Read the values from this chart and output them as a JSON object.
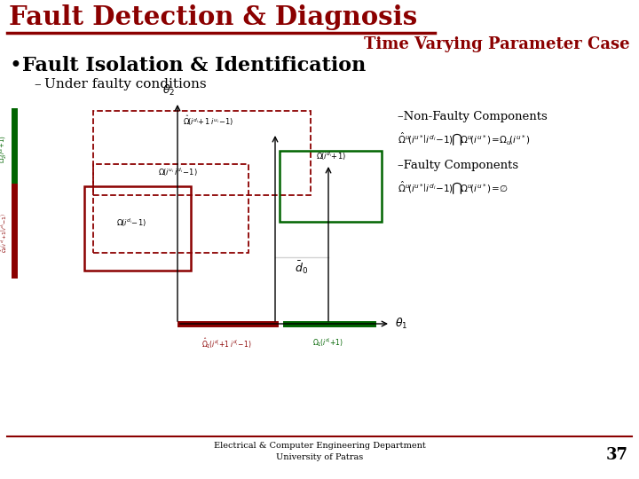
{
  "title": "Fault Detection & Diagnosis",
  "subtitle": "Time Varying Parameter Case",
  "title_color": "#8B0000",
  "subtitle_color": "#8B0000",
  "bullet_text": "Fault Isolation & Identification",
  "sub_bullet": "Under faulty conditions",
  "non_faulty_label": "–Non-Faulty Components",
  "faulty_label": "–Faulty Components",
  "non_faulty_eq": "$\\hat{\\Omega}^{u}\\!\\left(i^{u*}\\!\\left|i^{d_i}\\!-\\!1\\right.\\right)\\!\\bigcap\\!\\Omega^{u}\\!\\left(i^{u*}\\right)\\!=\\!\\Omega_u\\!\\left(i^{u*}\\right)$",
  "faulty_eq": "$\\hat{\\Omega}^{u}\\!\\left(i^{u*}\\!\\left|i^{d_i}\\!-\\!1\\right.\\right)\\!\\bigcap\\!\\Omega^{u}\\!\\left(i^{u*}\\right)\\!=\\!\\varnothing$",
  "footer_line1": "Electrical & Computer Engineering Department",
  "footer_line2": "University of Patras",
  "page_number": "37",
  "bg_color": "#FFFFFF",
  "dark_red": "#8B0000",
  "green": "#006400",
  "red_box": "#8B0000",
  "dashed_color": "#8B0000"
}
